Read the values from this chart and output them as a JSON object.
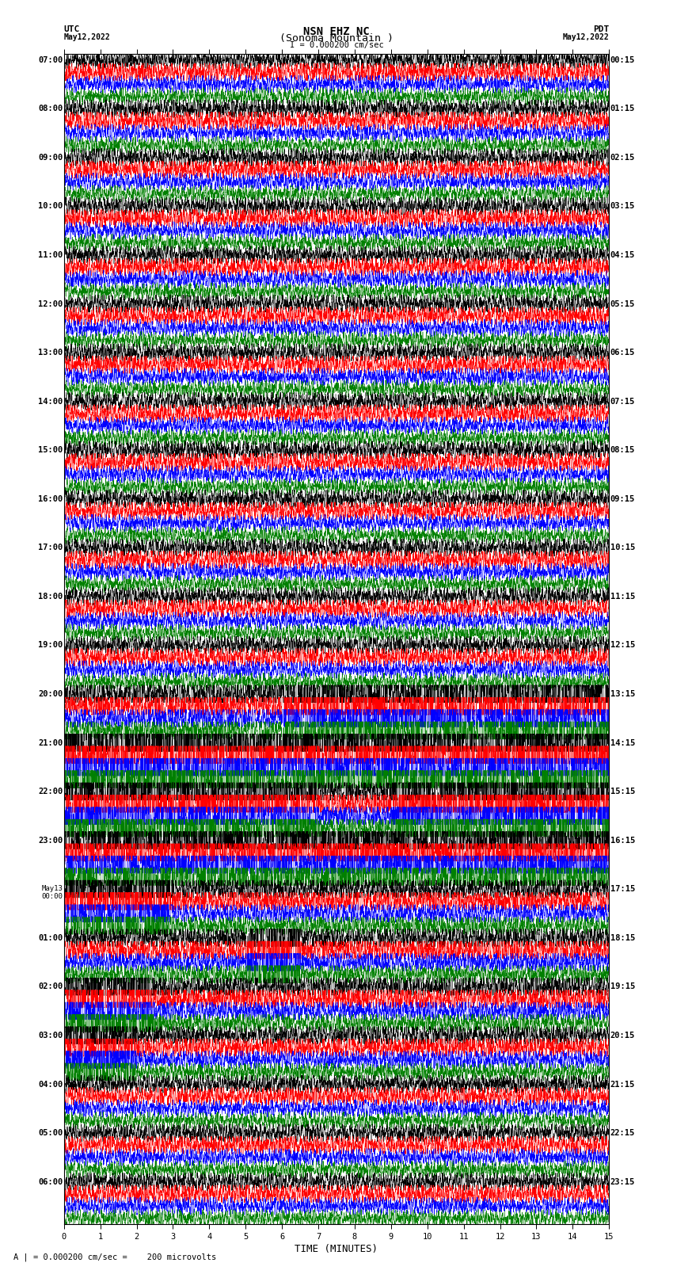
{
  "title_line1": "NSN EHZ NC",
  "title_line2": "(Sonoma Mountain )",
  "scale_label": "I = 0.000200 cm/sec",
  "left_date": "May12,2022",
  "right_date": "May12,2022",
  "left_header": "UTC",
  "right_header": "PDT",
  "bottom_label": "TIME (MINUTES)",
  "footnote": "A | = 0.000200 cm/sec =    200 microvolts",
  "utc_times": [
    "07:00",
    "08:00",
    "09:00",
    "10:00",
    "11:00",
    "12:00",
    "13:00",
    "14:00",
    "15:00",
    "16:00",
    "17:00",
    "18:00",
    "19:00",
    "20:00",
    "21:00",
    "22:00",
    "23:00",
    "May13\n00:00",
    "01:00",
    "02:00",
    "03:00",
    "04:00",
    "05:00",
    "06:00"
  ],
  "pdt_times": [
    "00:15",
    "01:15",
    "02:15",
    "03:15",
    "04:15",
    "05:15",
    "06:15",
    "07:15",
    "08:15",
    "09:15",
    "10:15",
    "11:15",
    "12:15",
    "13:15",
    "14:15",
    "15:15",
    "16:15",
    "17:15",
    "18:15",
    "19:15",
    "20:15",
    "21:15",
    "22:15",
    "23:15"
  ],
  "n_rows": 24,
  "traces_per_row": 4,
  "colors": [
    "black",
    "red",
    "blue",
    "green"
  ],
  "bg_color": "white",
  "xlim": [
    0,
    15
  ],
  "fig_width": 8.5,
  "fig_height": 16.13,
  "dpi": 100,
  "tick_fontsize": 7.5,
  "label_fontsize": 8,
  "title_fontsize": 10,
  "xlabel_fontsize": 9
}
